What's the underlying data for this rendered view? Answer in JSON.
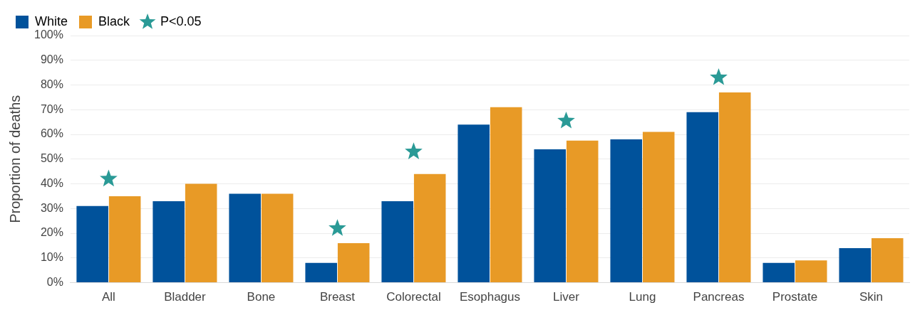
{
  "chart_data": {
    "type": "bar",
    "ylabel": "Proportion of deaths",
    "categories": [
      "All",
      "Bladder",
      "Bone",
      "Breast",
      "Colorectal",
      "Esophagus",
      "Liver",
      "Lung",
      "Pancreas",
      "Prostate",
      "Skin"
    ],
    "series": [
      {
        "name": "White",
        "color": "#00529b",
        "values": [
          31,
          33,
          36,
          8,
          33,
          64,
          54,
          58,
          69,
          8,
          14
        ]
      },
      {
        "name": "Black",
        "color": "#e89a26",
        "values": [
          35,
          40,
          36,
          16,
          44,
          71,
          57.5,
          61,
          77,
          9,
          18
        ]
      },
      {
        "name": "P<0.05",
        "type": "scatter",
        "marker": "star",
        "color": "#2a9a96",
        "x": [
          "All",
          "Breast",
          "Colorectal",
          "Liver",
          "Pancreas"
        ],
        "values": [
          42,
          22,
          53,
          65.5,
          83
        ]
      }
    ],
    "ylim": [
      0,
      100
    ],
    "yticks": [
      {
        "value": 0,
        "label": "0%"
      },
      {
        "value": 10,
        "label": "10%"
      },
      {
        "value": 20,
        "label": "20%"
      },
      {
        "value": 30,
        "label": "30%"
      },
      {
        "value": 40,
        "label": "40%"
      },
      {
        "value": 50,
        "label": "50%"
      },
      {
        "value": 60,
        "label": "60%"
      },
      {
        "value": 70,
        "label": "70%"
      },
      {
        "value": 80,
        "label": "80%"
      },
      {
        "value": 90,
        "label": "90%"
      },
      {
        "value": 100,
        "label": "100%"
      }
    ],
    "grid": "y",
    "legend": "top left"
  }
}
